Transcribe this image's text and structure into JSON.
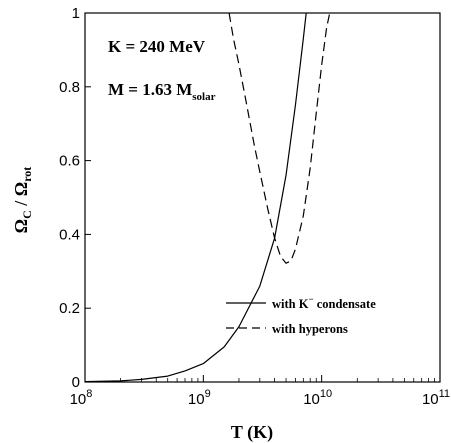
{
  "chart_data": {
    "type": "line",
    "x_scale": "log",
    "xlim": [
      100000000.0,
      100000000000.0
    ],
    "ylim": [
      0,
      1
    ],
    "x_ticks": [
      {
        "value": 100000000.0,
        "base": "10",
        "exp": "8"
      },
      {
        "value": 1000000000.0,
        "base": "10",
        "exp": "9"
      },
      {
        "value": 10000000000.0,
        "base": "10",
        "exp": "10"
      },
      {
        "value": 100000000000.0,
        "base": "10",
        "exp": "11"
      }
    ],
    "y_ticks": [
      {
        "value": 0,
        "label": "0"
      },
      {
        "value": 0.2,
        "label": "0.2"
      },
      {
        "value": 0.4,
        "label": "0.4"
      },
      {
        "value": 0.6,
        "label": "0.6"
      },
      {
        "value": 0.8,
        "label": "0.8"
      },
      {
        "value": 1,
        "label": "1"
      }
    ],
    "xlabel": "T (K)",
    "ylabel": {
      "a": "Ω",
      "a_sub": "C",
      "sep": " / ",
      "b": "Ω",
      "b_sub": "rot"
    },
    "annotations": {
      "line1": "K = 240 MeV",
      "line2": "M = 1.63 M",
      "line2_sub": "solar"
    },
    "grid": false,
    "legend_position": "lower-right",
    "series": [
      {
        "name": "with K⁻ condensate",
        "legend_main": "with K",
        "legend_sup": "−",
        "legend_rest": " condensate",
        "style": "solid",
        "x": [
          100000000.0,
          200000000.0,
          300000000.0,
          500000000.0,
          700000000.0,
          1000000000.0,
          1500000000.0,
          2000000000.0,
          3000000000.0,
          4000000000.0,
          5000000000.0,
          6000000000.0,
          7000000000.0,
          7400000000.0
        ],
        "y": [
          0.001,
          0.003,
          0.007,
          0.016,
          0.03,
          0.05,
          0.095,
          0.15,
          0.26,
          0.39,
          0.56,
          0.75,
          0.93,
          1.0
        ]
      },
      {
        "name": "with hyperons",
        "legend_main": "with hyperons",
        "style": "dashed",
        "x": [
          1650000000.0,
          1800000000.0,
          2000000000.0,
          2300000000.0,
          2700000000.0,
          3000000000.0,
          3500000000.0,
          4000000000.0,
          4500000000.0,
          5000000000.0,
          5500000000.0,
          6000000000.0,
          7000000000.0,
          8000000000.0,
          9000000000.0,
          10000000000.0,
          11000000000.0,
          11700000000.0
        ],
        "y": [
          1.0,
          0.93,
          0.86,
          0.76,
          0.64,
          0.57,
          0.47,
          0.39,
          0.34,
          0.322,
          0.328,
          0.36,
          0.45,
          0.58,
          0.73,
          0.86,
          0.96,
          1.0
        ]
      }
    ]
  }
}
